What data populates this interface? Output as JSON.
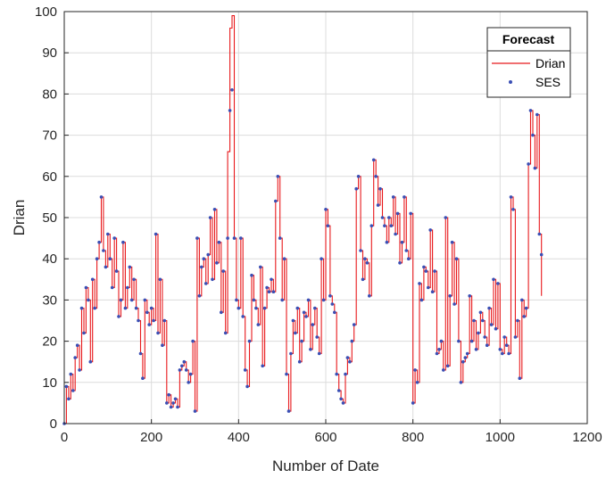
{
  "chart_data": {
    "type": "line",
    "xlabel": "Number of Date",
    "ylabel": "Drian",
    "xlim": [
      0,
      1200
    ],
    "ylim": [
      0,
      100
    ],
    "xticks": [
      0,
      200,
      400,
      600,
      800,
      1000,
      1200
    ],
    "yticks": [
      0,
      10,
      20,
      30,
      40,
      50,
      60,
      70,
      80,
      90,
      100
    ],
    "grid": true,
    "legend": {
      "title": "Forecast",
      "position": "top-right",
      "entries": [
        {
          "label": "Drian",
          "style": "line",
          "color": "#e8191c"
        },
        {
          "label": "SES",
          "style": "marker",
          "color": "#3a4fb5"
        }
      ]
    },
    "series": [
      {
        "name": "Drian",
        "kind": "line",
        "color": "#e8191c",
        "x": [
          0,
          5,
          10,
          15,
          20,
          25,
          30,
          35,
          40,
          45,
          50,
          55,
          60,
          65,
          70,
          75,
          80,
          85,
          90,
          95,
          100,
          105,
          110,
          115,
          120,
          125,
          130,
          135,
          140,
          145,
          150,
          155,
          160,
          165,
          170,
          175,
          180,
          185,
          190,
          195,
          200,
          205,
          210,
          215,
          220,
          225,
          230,
          235,
          240,
          245,
          250,
          255,
          260,
          265,
          270,
          275,
          280,
          285,
          290,
          295,
          300,
          305,
          310,
          315,
          320,
          325,
          330,
          335,
          340,
          345,
          350,
          355,
          360,
          365,
          370,
          375,
          380,
          385,
          390,
          395,
          400,
          405,
          410,
          415,
          420,
          425,
          430,
          435,
          440,
          445,
          450,
          455,
          460,
          465,
          470,
          475,
          480,
          485,
          490,
          495,
          500,
          505,
          510,
          515,
          520,
          525,
          530,
          535,
          540,
          545,
          550,
          555,
          560,
          565,
          570,
          575,
          580,
          585,
          590,
          595,
          600,
          605,
          610,
          615,
          620,
          625,
          630,
          635,
          640,
          645,
          650,
          655,
          660,
          665,
          670,
          675,
          680,
          685,
          690,
          695,
          700,
          705,
          710,
          715,
          720,
          725,
          730,
          735,
          740,
          745,
          750,
          755,
          760,
          765,
          770,
          775,
          780,
          785,
          790,
          795,
          800,
          805,
          810,
          815,
          820,
          825,
          830,
          835,
          840,
          845,
          850,
          855,
          860,
          865,
          870,
          875,
          880,
          885,
          890,
          895,
          900,
          905,
          910,
          915,
          920,
          925,
          930,
          935,
          940,
          945,
          950,
          955,
          960,
          965,
          970,
          975,
          980,
          985,
          990,
          995,
          1000,
          1005,
          1010,
          1015,
          1020,
          1025,
          1030,
          1035,
          1040,
          1045,
          1050,
          1055,
          1060,
          1065,
          1070,
          1075,
          1080,
          1085,
          1090,
          1095
        ],
        "y": [
          0,
          9,
          6,
          12,
          8,
          16,
          19,
          13,
          28,
          22,
          33,
          30,
          15,
          35,
          28,
          40,
          44,
          55,
          42,
          38,
          46,
          40,
          33,
          45,
          37,
          26,
          30,
          44,
          28,
          33,
          38,
          30,
          35,
          28,
          25,
          17,
          11,
          30,
          27,
          24,
          28,
          25,
          46,
          22,
          35,
          19,
          25,
          5,
          7,
          4,
          5,
          6,
          4,
          13,
          14,
          15,
          13,
          10,
          12,
          20,
          3,
          45,
          31,
          38,
          40,
          34,
          41,
          50,
          35,
          52,
          39,
          44,
          27,
          37,
          22,
          66,
          96,
          99,
          45,
          30,
          28,
          45,
          26,
          13,
          9,
          20,
          36,
          30,
          28,
          24,
          38,
          14,
          28,
          33,
          32,
          35,
          32,
          54,
          60,
          45,
          30,
          40,
          12,
          3,
          17,
          25,
          22,
          28,
          15,
          20,
          27,
          26,
          30,
          18,
          24,
          28,
          21,
          17,
          40,
          30,
          52,
          48,
          31,
          29,
          27,
          12,
          8,
          6,
          5,
          12,
          16,
          15,
          20,
          24,
          57,
          60,
          42,
          35,
          40,
          39,
          31,
          48,
          64,
          60,
          53,
          57,
          50,
          48,
          44,
          50,
          48,
          55,
          46,
          51,
          39,
          44,
          55,
          42,
          40,
          51,
          5,
          13,
          10,
          34,
          30,
          38,
          37,
          33,
          47,
          32,
          37,
          17,
          18,
          20,
          13,
          50,
          14,
          31,
          44,
          29,
          40,
          20,
          10,
          15,
          16,
          17,
          31,
          20,
          25,
          18,
          22,
          27,
          25,
          21,
          19,
          28,
          24,
          35,
          23,
          34,
          18,
          17,
          21,
          19,
          17,
          55,
          52,
          21,
          25,
          11,
          30,
          26,
          28,
          63,
          76,
          70,
          62,
          75,
          46,
          31
        ],
        "drawing_note": ""
      },
      {
        "name": "SES",
        "kind": "marker",
        "color": "#3a4fb5",
        "x": [
          0,
          5,
          10,
          15,
          20,
          25,
          30,
          35,
          40,
          45,
          50,
          55,
          60,
          65,
          70,
          75,
          80,
          85,
          90,
          95,
          100,
          105,
          110,
          115,
          120,
          125,
          130,
          135,
          140,
          145,
          150,
          155,
          160,
          165,
          170,
          175,
          180,
          185,
          190,
          195,
          200,
          205,
          210,
          215,
          220,
          225,
          230,
          235,
          240,
          245,
          250,
          255,
          260,
          265,
          270,
          275,
          280,
          285,
          290,
          295,
          300,
          305,
          310,
          315,
          320,
          325,
          330,
          335,
          340,
          345,
          350,
          355,
          360,
          365,
          370,
          375,
          380,
          385,
          390,
          395,
          400,
          405,
          410,
          415,
          420,
          425,
          430,
          435,
          440,
          445,
          450,
          455,
          460,
          465,
          470,
          475,
          480,
          485,
          490,
          495,
          500,
          505,
          510,
          515,
          520,
          525,
          530,
          535,
          540,
          545,
          550,
          555,
          560,
          565,
          570,
          575,
          580,
          585,
          590,
          595,
          600,
          605,
          610,
          615,
          620,
          625,
          630,
          635,
          640,
          645,
          650,
          655,
          660,
          665,
          670,
          675,
          680,
          685,
          690,
          695,
          700,
          705,
          710,
          715,
          720,
          725,
          730,
          735,
          740,
          745,
          750,
          755,
          760,
          765,
          770,
          775,
          780,
          785,
          790,
          795,
          800,
          805,
          810,
          815,
          820,
          825,
          830,
          835,
          840,
          845,
          850,
          855,
          860,
          865,
          870,
          875,
          880,
          885,
          890,
          895,
          900,
          905,
          910,
          915,
          920,
          925,
          930,
          935,
          940,
          945,
          950,
          955,
          960,
          965,
          970,
          975,
          980,
          985,
          990,
          995,
          1000,
          1005,
          1010,
          1015,
          1020,
          1025,
          1030,
          1035,
          1040,
          1045,
          1050,
          1055,
          1060,
          1065,
          1070,
          1075,
          1080,
          1085,
          1090,
          1095
        ],
        "y": [
          0,
          9,
          6,
          12,
          8,
          16,
          19,
          13,
          28,
          22,
          33,
          30,
          15,
          35,
          28,
          40,
          44,
          55,
          42,
          38,
          46,
          40,
          33,
          45,
          37,
          26,
          30,
          44,
          28,
          33,
          38,
          30,
          35,
          28,
          25,
          17,
          11,
          30,
          27,
          24,
          28,
          25,
          46,
          22,
          35,
          19,
          25,
          5,
          7,
          4,
          5,
          6,
          4,
          13,
          14,
          15,
          13,
          10,
          12,
          20,
          3,
          45,
          31,
          38,
          40,
          34,
          41,
          50,
          35,
          52,
          39,
          44,
          27,
          37,
          22,
          45,
          76,
          81,
          45,
          30,
          28,
          45,
          26,
          13,
          9,
          20,
          36,
          30,
          28,
          24,
          38,
          14,
          28,
          33,
          32,
          35,
          32,
          54,
          60,
          45,
          30,
          40,
          12,
          3,
          17,
          25,
          22,
          28,
          15,
          20,
          27,
          26,
          30,
          18,
          24,
          28,
          21,
          17,
          40,
          30,
          52,
          48,
          31,
          29,
          27,
          12,
          8,
          6,
          5,
          12,
          16,
          15,
          20,
          24,
          57,
          60,
          42,
          35,
          40,
          39,
          31,
          48,
          64,
          60,
          53,
          57,
          50,
          48,
          44,
          50,
          48,
          55,
          46,
          51,
          39,
          44,
          55,
          42,
          40,
          51,
          5,
          13,
          10,
          34,
          30,
          38,
          37,
          33,
          47,
          32,
          37,
          17,
          18,
          20,
          13,
          50,
          14,
          31,
          44,
          29,
          40,
          20,
          10,
          15,
          16,
          17,
          31,
          20,
          25,
          18,
          22,
          27,
          25,
          21,
          19,
          28,
          24,
          35,
          23,
          34,
          18,
          17,
          21,
          19,
          17,
          55,
          52,
          21,
          25,
          11,
          30,
          26,
          28,
          63,
          76,
          70,
          62,
          75,
          46,
          41
        ]
      }
    ]
  }
}
